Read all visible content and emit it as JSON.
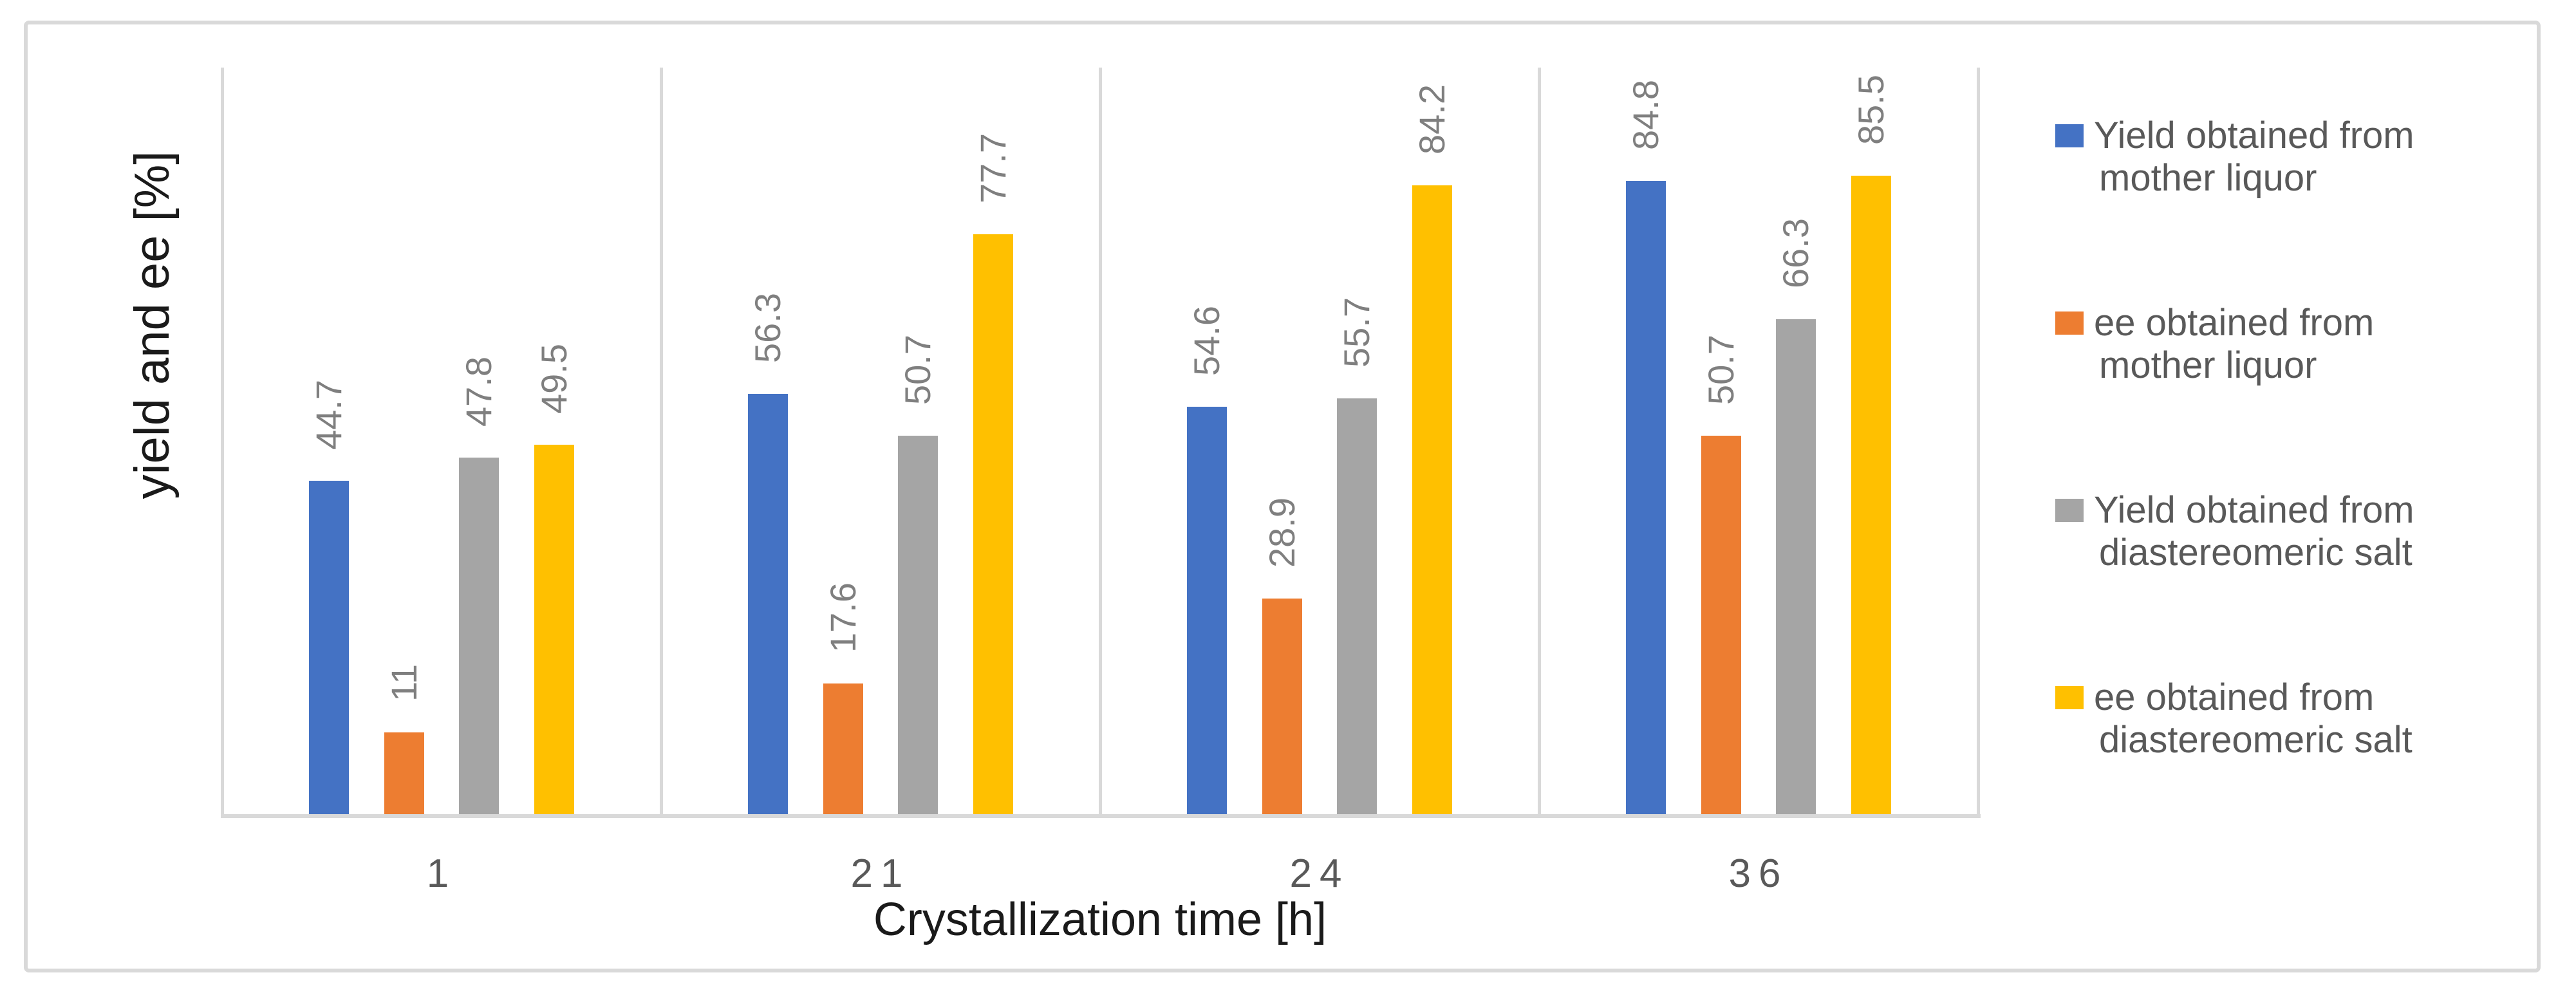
{
  "figure": {
    "background": "#FFFFFF",
    "frame_border_color": "#D9D9D9"
  },
  "chart_data": {
    "type": "bar",
    "title": "",
    "xlabel": "Crystallization time [h]",
    "ylabel": "yield and ee [%]",
    "categories": [
      "1",
      "21",
      "24",
      "36"
    ],
    "series": [
      {
        "name": "Yield obtained from mother liquor",
        "legend_lines": [
          "Yield obtained from",
          "mother liquor"
        ],
        "color": "#4472C4",
        "values": [
          44.7,
          56.3,
          54.6,
          84.8
        ]
      },
      {
        "name": "ee obtained from mother liquor",
        "legend_lines": [
          "ee obtained from",
          "mother liquor"
        ],
        "color": "#ED7D31",
        "values": [
          11,
          17.6,
          28.9,
          50.7
        ]
      },
      {
        "name": "Yield obtained from diastereomeric salt",
        "legend_lines": [
          "Yield obtained from",
          "diastereomeric salt"
        ],
        "color": "#A5A5A5",
        "values": [
          47.8,
          50.7,
          55.7,
          66.3
        ]
      },
      {
        "name": "ee obtained from diastereomeric salt",
        "legend_lines": [
          "ee obtained from",
          "diastereomeric salt"
        ],
        "color": "#FFC000",
        "values": [
          49.5,
          77.7,
          84.2,
          85.5
        ]
      }
    ],
    "ylim": [
      0,
      100
    ],
    "y_axis_ticks_visible": false,
    "grid": "vertical-category-separators",
    "gridline_color": "#D9D9D9",
    "axis_line_color": "#D9D9D9",
    "legend_position": "right",
    "legend_text_color": "#595959",
    "data_labels": {
      "visible": true,
      "rotation": -90,
      "color": "#7F7F7F"
    },
    "category_label_color": "#595959",
    "axis_title_color": "#1A1A1A"
  }
}
